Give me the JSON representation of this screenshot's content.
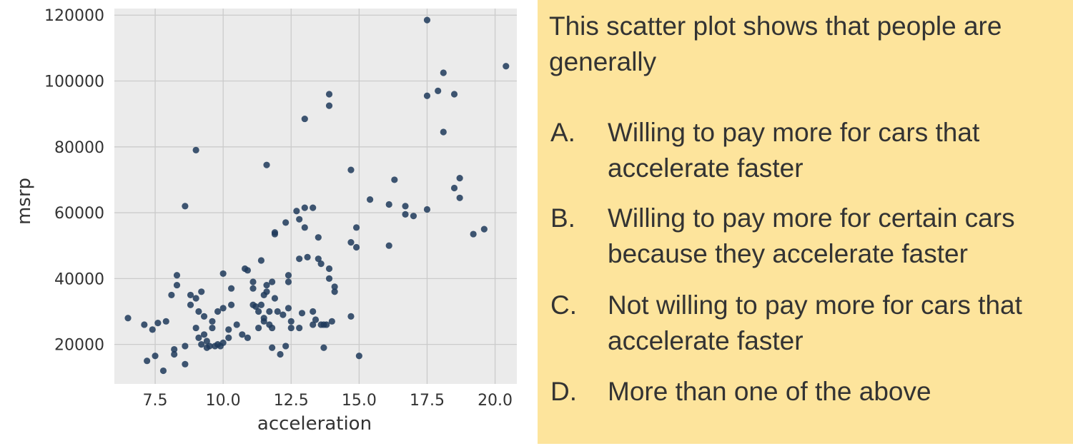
{
  "chart_data": {
    "type": "scatter",
    "xlabel": "acceleration",
    "ylabel": "msrp",
    "xlim": [
      6.0,
      20.8
    ],
    "ylim": [
      8000,
      122000
    ],
    "xticks": [
      7.5,
      10.0,
      12.5,
      15.0,
      17.5,
      20.0
    ],
    "xtick_labels": [
      "7.5",
      "10.0",
      "12.5",
      "15.0",
      "17.5",
      "20.0"
    ],
    "yticks": [
      20000,
      40000,
      60000,
      80000,
      100000,
      120000
    ],
    "ytick_labels": [
      "20000",
      "40000",
      "60000",
      "80000",
      "100000",
      "120000"
    ],
    "grid": true,
    "point_color": "#1f3a5a",
    "background": "#ebebeb",
    "points": [
      [
        6.5,
        28000
      ],
      [
        7.1,
        26000
      ],
      [
        7.2,
        15000
      ],
      [
        7.4,
        24500
      ],
      [
        7.5,
        16500
      ],
      [
        7.6,
        26500
      ],
      [
        7.8,
        12000
      ],
      [
        7.9,
        27000
      ],
      [
        8.1,
        35000
      ],
      [
        8.2,
        17000
      ],
      [
        8.2,
        18500
      ],
      [
        8.3,
        38000
      ],
      [
        8.3,
        41000
      ],
      [
        8.6,
        14000
      ],
      [
        8.6,
        19500
      ],
      [
        8.6,
        62000
      ],
      [
        8.8,
        35000
      ],
      [
        8.8,
        32000
      ],
      [
        9.0,
        34000
      ],
      [
        9.0,
        79000
      ],
      [
        9.0,
        25000
      ],
      [
        9.1,
        30000
      ],
      [
        9.1,
        22000
      ],
      [
        9.2,
        20000
      ],
      [
        9.2,
        36000
      ],
      [
        9.3,
        28500
      ],
      [
        9.3,
        23000
      ],
      [
        9.4,
        19000
      ],
      [
        9.4,
        21000
      ],
      [
        9.5,
        19500
      ],
      [
        9.6,
        27000
      ],
      [
        9.6,
        25000
      ],
      [
        9.7,
        19500
      ],
      [
        9.8,
        30000
      ],
      [
        9.8,
        20000
      ],
      [
        9.9,
        19500
      ],
      [
        10.0,
        41500
      ],
      [
        10.0,
        31000
      ],
      [
        10.0,
        20500
      ],
      [
        10.2,
        22000
      ],
      [
        10.2,
        24500
      ],
      [
        10.3,
        37000
      ],
      [
        10.3,
        32000
      ],
      [
        10.5,
        26000
      ],
      [
        10.7,
        23000
      ],
      [
        10.8,
        43000
      ],
      [
        10.9,
        42500
      ],
      [
        10.9,
        22000
      ],
      [
        11.1,
        39000
      ],
      [
        11.1,
        37000
      ],
      [
        11.1,
        32000
      ],
      [
        11.2,
        31500
      ],
      [
        11.3,
        30000
      ],
      [
        11.3,
        25000
      ],
      [
        11.4,
        45500
      ],
      [
        11.4,
        32000
      ],
      [
        11.5,
        28000
      ],
      [
        11.5,
        27000
      ],
      [
        11.5,
        35000
      ],
      [
        11.6,
        38000
      ],
      [
        11.6,
        74500
      ],
      [
        11.6,
        36000
      ],
      [
        11.7,
        26000
      ],
      [
        11.7,
        30000
      ],
      [
        11.8,
        39000
      ],
      [
        11.8,
        25000
      ],
      [
        11.8,
        19000
      ],
      [
        11.9,
        54000
      ],
      [
        11.9,
        34000
      ],
      [
        11.9,
        53500
      ],
      [
        12.0,
        30000
      ],
      [
        12.1,
        17000
      ],
      [
        12.2,
        29000
      ],
      [
        12.3,
        19500
      ],
      [
        12.3,
        57000
      ],
      [
        12.4,
        41000
      ],
      [
        12.4,
        39000
      ],
      [
        12.4,
        31000
      ],
      [
        12.5,
        27000
      ],
      [
        12.5,
        25000
      ],
      [
        12.7,
        60500
      ],
      [
        12.8,
        58000
      ],
      [
        12.8,
        46000
      ],
      [
        12.8,
        25000
      ],
      [
        12.9,
        29500
      ],
      [
        13.0,
        61500
      ],
      [
        13.0,
        55500
      ],
      [
        13.0,
        88500
      ],
      [
        13.1,
        46500
      ],
      [
        13.3,
        26000
      ],
      [
        13.3,
        30000
      ],
      [
        13.3,
        61500
      ],
      [
        13.4,
        27500
      ],
      [
        13.5,
        46000
      ],
      [
        13.5,
        52500
      ],
      [
        13.6,
        26000
      ],
      [
        13.6,
        44500
      ],
      [
        13.7,
        19000
      ],
      [
        13.7,
        26000
      ],
      [
        13.8,
        26000
      ],
      [
        13.9,
        96000
      ],
      [
        13.9,
        92500
      ],
      [
        13.9,
        43000
      ],
      [
        13.9,
        40000
      ],
      [
        14.0,
        27000
      ],
      [
        14.1,
        36000
      ],
      [
        14.1,
        37500
      ],
      [
        14.7,
        73000
      ],
      [
        14.7,
        28500
      ],
      [
        14.7,
        51000
      ],
      [
        14.9,
        55500
      ],
      [
        15.0,
        16500
      ],
      [
        14.9,
        49500
      ],
      [
        15.4,
        64000
      ],
      [
        16.1,
        62500
      ],
      [
        16.1,
        50000
      ],
      [
        16.3,
        70000
      ],
      [
        16.7,
        62000
      ],
      [
        16.7,
        59500
      ],
      [
        17.0,
        59000
      ],
      [
        17.5,
        61000
      ],
      [
        17.5,
        95500
      ],
      [
        17.5,
        118500
      ],
      [
        17.9,
        97000
      ],
      [
        18.1,
        102500
      ],
      [
        18.1,
        84500
      ],
      [
        18.5,
        96000
      ],
      [
        18.5,
        67500
      ],
      [
        18.7,
        70500
      ],
      [
        18.7,
        64500
      ],
      [
        19.2,
        53500
      ],
      [
        19.6,
        55000
      ],
      [
        20.4,
        104500
      ]
    ]
  },
  "question": {
    "text": "This scatter plot shows that people are generally",
    "options": [
      {
        "letter": "A.",
        "text": "Willing to pay more for cars that accelerate faster"
      },
      {
        "letter": "B.",
        "text": "Willing to pay more for certain cars because they accelerate faster"
      },
      {
        "letter": "C.",
        "text": "Not willing to pay more for cars that accelerate faster"
      },
      {
        "letter": "D.",
        "text": "More than one of the above"
      }
    ]
  },
  "colors": {
    "panel_background": "#fde49c",
    "text": "#333333"
  }
}
